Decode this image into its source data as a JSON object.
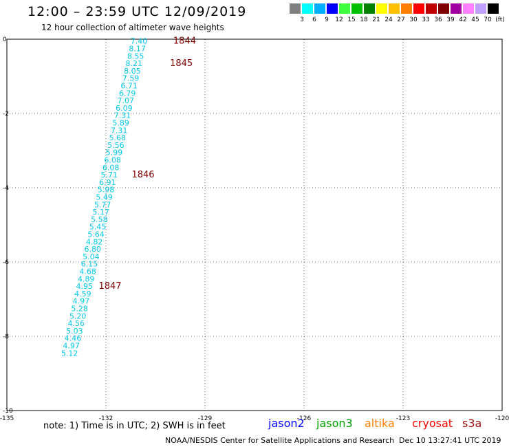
{
  "title": "12:00 – 23:59 UTC 12/09/2019",
  "subtitle": "12 hour collection of altimeter wave heights",
  "colorbar": {
    "colors": [
      "#808080",
      "#00ffff",
      "#00b0ff",
      "#0000ff",
      "#40ff40",
      "#00c000",
      "#008000",
      "#ffff00",
      "#ffc000",
      "#ff8000",
      "#ff0000",
      "#c00000",
      "#800000",
      "#a000a0",
      "#ff80ff",
      "#c0a0ff",
      "#000000"
    ],
    "labels": [
      "3",
      "6",
      "9",
      "12",
      "15",
      "18",
      "21",
      "24",
      "27",
      "30",
      "33",
      "36",
      "39",
      "42",
      "45",
      "70",
      "(ft)"
    ]
  },
  "map": {
    "lon_range": [
      -135,
      -120
    ],
    "lat_range": [
      -10,
      0
    ],
    "x_ticks": [
      "-135",
      "-132",
      "-129",
      "-126",
      "-123",
      "-120"
    ],
    "y_ticks": [
      "0",
      "-2",
      "-4",
      "-6",
      "-8",
      "-10"
    ]
  },
  "swh_values": [
    {
      "lon": -131.0,
      "lat": -0.05,
      "swh": "7.40"
    },
    {
      "lon": -131.05,
      "lat": -0.25,
      "swh": "8.17"
    },
    {
      "lon": -131.1,
      "lat": -0.45,
      "swh": "8.55"
    },
    {
      "lon": -131.15,
      "lat": -0.65,
      "swh": "8.21"
    },
    {
      "lon": -131.2,
      "lat": -0.85,
      "swh": "8.05"
    },
    {
      "lon": -131.25,
      "lat": -1.05,
      "swh": "7.59"
    },
    {
      "lon": -131.3,
      "lat": -1.25,
      "swh": "6.71"
    },
    {
      "lon": -131.35,
      "lat": -1.45,
      "swh": "6.79"
    },
    {
      "lon": -131.4,
      "lat": -1.65,
      "swh": "7.07"
    },
    {
      "lon": -131.45,
      "lat": -1.85,
      "swh": "6.09"
    },
    {
      "lon": -131.5,
      "lat": -2.05,
      "swh": "7.31"
    },
    {
      "lon": -131.55,
      "lat": -2.25,
      "swh": "5.89"
    },
    {
      "lon": -131.6,
      "lat": -2.45,
      "swh": "7.31"
    },
    {
      "lon": -131.65,
      "lat": -2.65,
      "swh": "5.68"
    },
    {
      "lon": -131.7,
      "lat": -2.85,
      "swh": "5.56"
    },
    {
      "lon": -131.75,
      "lat": -3.05,
      "swh": "5.99"
    },
    {
      "lon": -131.8,
      "lat": -3.25,
      "swh": "6.08"
    },
    {
      "lon": -131.85,
      "lat": -3.45,
      "swh": "6.08"
    },
    {
      "lon": -131.9,
      "lat": -3.65,
      "swh": "5.71"
    },
    {
      "lon": -131.95,
      "lat": -3.85,
      "swh": "6.91"
    },
    {
      "lon": -132.0,
      "lat": -4.05,
      "swh": "5.98"
    },
    {
      "lon": -132.05,
      "lat": -4.25,
      "swh": "5.49"
    },
    {
      "lon": -132.1,
      "lat": -4.45,
      "swh": "5.77"
    },
    {
      "lon": -132.15,
      "lat": -4.65,
      "swh": "5.17"
    },
    {
      "lon": -132.2,
      "lat": -4.85,
      "swh": "5.58"
    },
    {
      "lon": -132.25,
      "lat": -5.05,
      "swh": "5.45"
    },
    {
      "lon": -132.3,
      "lat": -5.25,
      "swh": "5.64"
    },
    {
      "lon": -132.35,
      "lat": -5.45,
      "swh": "4.82"
    },
    {
      "lon": -132.4,
      "lat": -5.65,
      "swh": "6.80"
    },
    {
      "lon": -132.45,
      "lat": -5.85,
      "swh": "5.04"
    },
    {
      "lon": -132.5,
      "lat": -6.05,
      "swh": "6.15"
    },
    {
      "lon": -132.55,
      "lat": -6.25,
      "swh": "4.68"
    },
    {
      "lon": -132.6,
      "lat": -6.45,
      "swh": "4.89"
    },
    {
      "lon": -132.65,
      "lat": -6.65,
      "swh": "4.95"
    },
    {
      "lon": -132.7,
      "lat": -6.85,
      "swh": "4.59"
    },
    {
      "lon": -132.75,
      "lat": -7.05,
      "swh": "4.97"
    },
    {
      "lon": -132.8,
      "lat": -7.25,
      "swh": "5.28"
    },
    {
      "lon": -132.85,
      "lat": -7.45,
      "swh": "5.20"
    },
    {
      "lon": -132.9,
      "lat": -7.65,
      "swh": "4.56"
    },
    {
      "lon": -132.95,
      "lat": -7.85,
      "swh": "5.03"
    },
    {
      "lon": -133.0,
      "lat": -8.05,
      "swh": "4.46"
    },
    {
      "lon": -133.05,
      "lat": -8.25,
      "swh": "4.97"
    },
    {
      "lon": -133.1,
      "lat": -8.45,
      "swh": "5.12"
    }
  ],
  "time_labels": [
    {
      "text": "1844",
      "lon": -129.96,
      "lat": -0.05
    },
    {
      "text": "1845",
      "lon": -130.06,
      "lat": -0.65
    },
    {
      "text": "1846",
      "lon": -131.22,
      "lat": -3.65
    },
    {
      "text": "1847",
      "lon": -132.22,
      "lat": -6.65
    }
  ],
  "note": "note: 1) Time is in UTC; 2) SWH is in feet",
  "legend": [
    {
      "label": "jason2",
      "color": "#0000ff"
    },
    {
      "label": "jason3",
      "color": "#00a000"
    },
    {
      "label": "altika",
      "color": "#ff8000"
    },
    {
      "label": "cryosat",
      "color": "#ff0000"
    },
    {
      "label": "s3a",
      "color": "#a01010"
    }
  ],
  "credit": "NOAA/NESDIS Center for Satellite Applications and Research",
  "timestamp": "Dec 10 13:27:41 UTC 2019"
}
